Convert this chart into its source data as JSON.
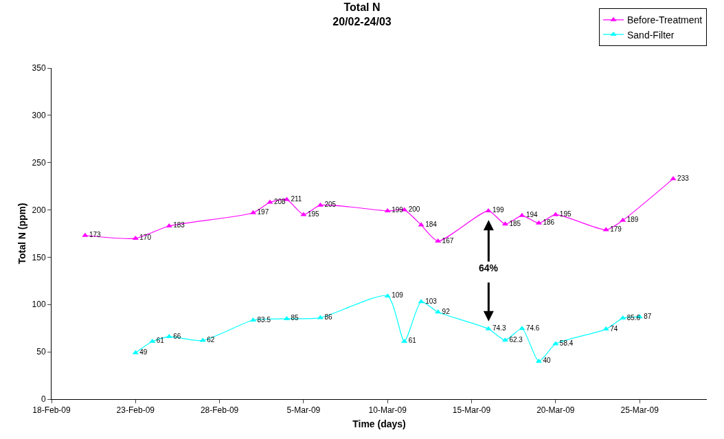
{
  "chart_data": {
    "type": "line",
    "title": "Total N",
    "subtitle": "20/02-24/03",
    "xlabel": "Time (days)",
    "ylabel": "Total N (ppm)",
    "series": [
      {
        "name": "Before-Treatment",
        "color": "#ff00ff",
        "x": [
          "--02-20",
          "--02-23",
          "--02-25",
          "--03-02",
          "--03-03",
          "--03-04",
          "--03-05",
          "--03-06",
          "--03-10",
          "--03-11",
          "--03-12",
          "--03-13",
          "--03-16",
          "--03-17",
          "--03-18",
          "--03-19",
          "--03-20",
          "--03-23",
          "--03-24",
          "--03-27"
        ],
        "values": [
          173,
          170,
          183,
          197,
          208,
          211,
          195,
          205,
          199,
          200,
          184,
          167,
          199,
          185,
          194,
          186,
          195,
          179,
          189,
          233
        ]
      },
      {
        "name": "Sand-Filter",
        "color": "#00ffff",
        "x": [
          "--02-23",
          "--02-24",
          "--02-25",
          "--02-27",
          "--03-02",
          "--03-04",
          "--03-06",
          "--03-10",
          "--03-11",
          "--03-12",
          "--03-13",
          "--03-16",
          "--03-17",
          "--03-18",
          "--03-19",
          "--03-20",
          "--03-23",
          "--03-24",
          "--03-25"
        ],
        "values": [
          49,
          61,
          66,
          62,
          83.5,
          85,
          86,
          109,
          61,
          103,
          92,
          74.3,
          62.3,
          74.6,
          40,
          58.4,
          74,
          85.6,
          87
        ]
      }
    ],
    "xlim": [
      "--02-18",
      "--03-29"
    ],
    "xticks": [
      {
        "value": "--02-18",
        "label": "18-Feb-09"
      },
      {
        "value": "--02-23",
        "label": "23-Feb-09"
      },
      {
        "value": "--02-28",
        "label": "28-Feb-09"
      },
      {
        "value": "--03-05",
        "label": "5-Mar-09"
      },
      {
        "value": "--03-10",
        "label": "10-Mar-09"
      },
      {
        "value": "--03-15",
        "label": "15-Mar-09"
      },
      {
        "value": "--03-20",
        "label": "20-Mar-09"
      },
      {
        "value": "--03-25",
        "label": "25-Mar-09"
      }
    ],
    "ylim": [
      0,
      350
    ],
    "yticks": [
      0,
      50,
      100,
      150,
      200,
      250,
      300,
      350
    ],
    "annotations": [
      "64%"
    ],
    "data_labels": true,
    "grid": false,
    "legend": "top right",
    "marker": "triangle",
    "line_style": "solid"
  }
}
